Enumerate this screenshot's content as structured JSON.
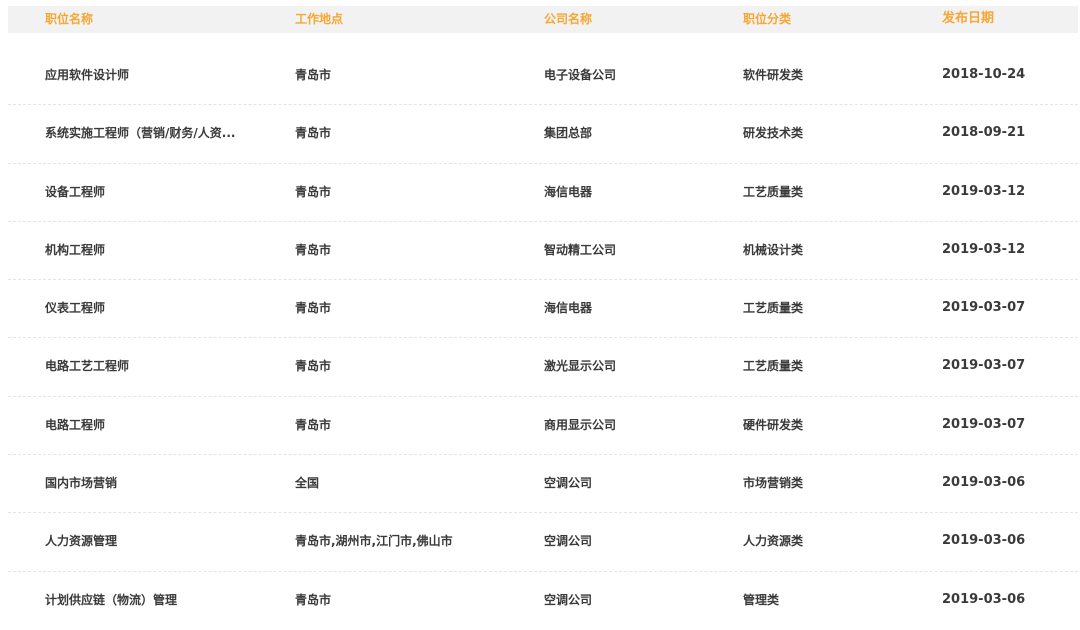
{
  "colors": {
    "header_text": "#f5a733",
    "header_bg": "#f2f2f2",
    "body_text": "#3a3a3a"
  },
  "columns": [
    "职位名称",
    "工作地点",
    "公司名称",
    "职位分类",
    "发布日期"
  ],
  "rows": [
    [
      "应用软件设计师",
      "青岛市",
      "电子设备公司",
      "软件研发类",
      "2018-10-24"
    ],
    [
      "系统实施工程师（营销/财务/人资...",
      "青岛市",
      "集团总部",
      "研发技术类",
      "2018-09-21"
    ],
    [
      "设备工程师",
      "青岛市",
      "海信电器",
      "工艺质量类",
      "2019-03-12"
    ],
    [
      "机构工程师",
      "青岛市",
      "智动精工公司",
      "机械设计类",
      "2019-03-12"
    ],
    [
      "仪表工程师",
      "青岛市",
      "海信电器",
      "工艺质量类",
      "2019-03-07"
    ],
    [
      "电路工艺工程师",
      "青岛市",
      "激光显示公司",
      "工艺质量类",
      "2019-03-07"
    ],
    [
      "电路工程师",
      "青岛市",
      "商用显示公司",
      "硬件研发类",
      "2019-03-07"
    ],
    [
      "国内市场营销",
      "全国",
      "空调公司",
      "市场营销类",
      "2019-03-06"
    ],
    [
      "人力资源管理",
      "青岛市,湖州市,江门市,佛山市",
      "空调公司",
      "人力资源类",
      "2019-03-06"
    ],
    [
      "计划供应链（物流）管理",
      "青岛市",
      "空调公司",
      "管理类",
      "2019-03-06"
    ]
  ]
}
